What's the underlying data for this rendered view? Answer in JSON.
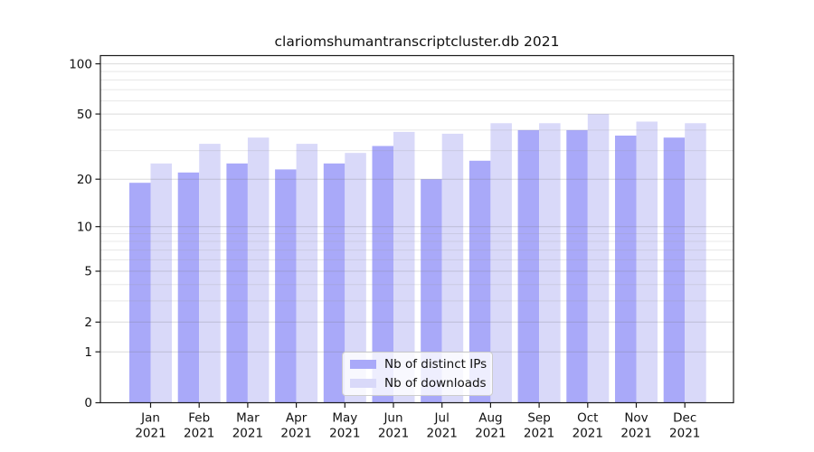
{
  "title": "clariomshumantranscriptcluster.db 2021",
  "chart_data": {
    "type": "bar",
    "title": "clariomshumantranscriptcluster.db 2021",
    "categories": [
      "Jan",
      "Feb",
      "Mar",
      "Apr",
      "May",
      "Jun",
      "Jul",
      "Aug",
      "Sep",
      "Oct",
      "Nov",
      "Dec"
    ],
    "year_label": "2021",
    "series": [
      {
        "name": "Nb of distinct IPs",
        "color": "#a9a9f9",
        "values": [
          19,
          22,
          25,
          23,
          25,
          32,
          20,
          26,
          40,
          40,
          37,
          36
        ]
      },
      {
        "name": "Nb of downloads",
        "color": "#d9d9f9",
        "values": [
          25,
          33,
          36,
          33,
          29,
          39,
          38,
          44,
          44,
          50,
          45,
          44
        ]
      }
    ],
    "y_scale": "log(value+1)",
    "y_ticks": [
      0,
      1,
      2,
      5,
      10,
      20,
      50,
      100
    ],
    "y_minor_ticks": [
      3,
      4,
      6,
      7,
      8,
      9,
      30,
      40,
      60,
      70,
      80,
      90
    ],
    "ylim": [
      0,
      112
    ],
    "xlabel": "",
    "ylabel": "",
    "grid": true,
    "legend_position": "bottom-center-inside",
    "colors": {
      "axis": "#1a1a1a",
      "grid_major": "#d9d9d9",
      "grid_minor": "#ededed",
      "background": "#ffffff",
      "text": "#111111"
    }
  }
}
